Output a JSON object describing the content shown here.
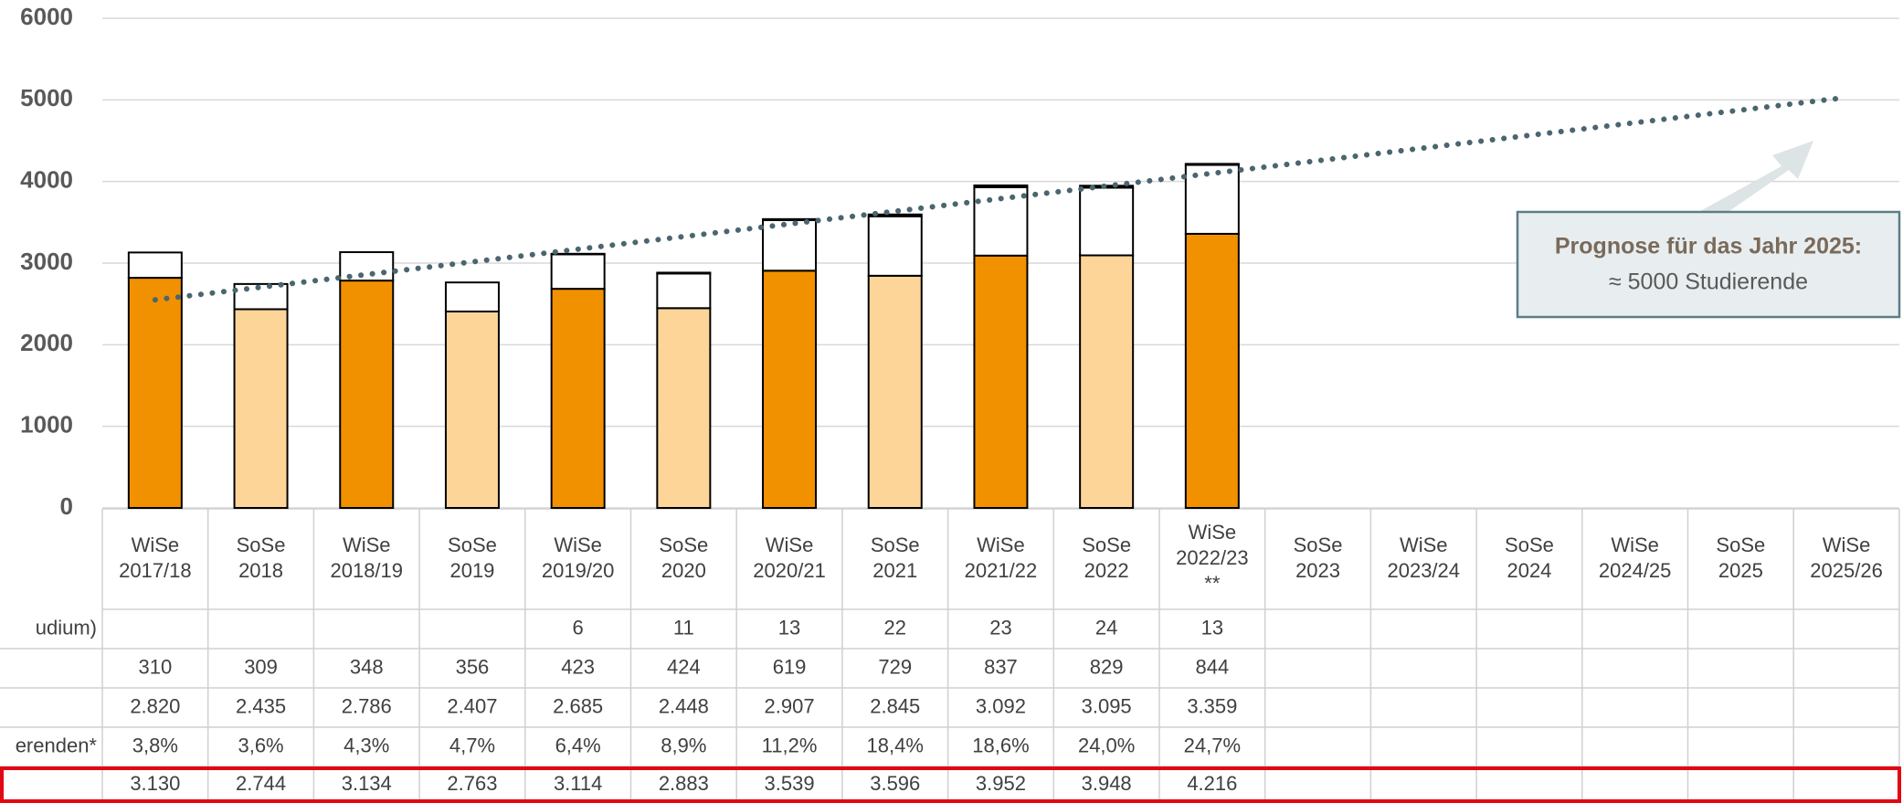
{
  "chart_data": {
    "type": "bar",
    "stacked": true,
    "categories": [
      "WiSe 2017/18",
      "SoSe 2018",
      "WiSe 2018/19",
      "SoSe 2019",
      "WiSe 2019/20",
      "SoSe 2020",
      "WiSe 2020/21",
      "SoSe 2021",
      "WiSe 2021/22",
      "SoSe 2022",
      "WiSe 2022/23 **",
      "SoSe 2023",
      "WiSe 2023/24",
      "SoSe 2024",
      "WiSe 2024/25",
      "SoSe 2025",
      "WiSe 2025/26"
    ],
    "series": [
      {
        "name": "udium)",
        "color": "#000000",
        "values": [
          null,
          null,
          null,
          null,
          6,
          11,
          13,
          22,
          23,
          24,
          13,
          null,
          null,
          null,
          null,
          null,
          null
        ]
      },
      {
        "color": "#ffffff",
        "values": [
          310,
          309,
          348,
          356,
          423,
          424,
          619,
          729,
          837,
          829,
          844,
          null,
          null,
          null,
          null,
          null,
          null
        ]
      },
      {
        "colors": [
          "#f29100",
          "#fdd599",
          "#f29100",
          "#fdd599",
          "#f29100",
          "#fdd599",
          "#f29100",
          "#fdd599",
          "#f29100",
          "#fdd599",
          "#f29100",
          null,
          null,
          null,
          null,
          null,
          null
        ],
        "values": [
          2820,
          2435,
          2786,
          2407,
          2685,
          2448,
          2907,
          2845,
          3092,
          3095,
          3359,
          null,
          null,
          null,
          null,
          null,
          null
        ],
        "value_labels": [
          "2.820",
          "2.435",
          "2.786",
          "2.407",
          "2.685",
          "2.448",
          "2.907",
          "2.845",
          "3.092",
          "3.095",
          "3.359",
          null,
          null,
          null,
          null,
          null,
          null
        ]
      }
    ],
    "share_row": {
      "label": "erenden*",
      "values": [
        3.8,
        3.6,
        4.3,
        4.7,
        6.4,
        8.9,
        11.2,
        18.4,
        18.6,
        24.0,
        24.7,
        null,
        null,
        null,
        null,
        null,
        null
      ],
      "value_labels": [
        "3,8%",
        "3,6%",
        "4,3%",
        "4,7%",
        "6,4%",
        "8,9%",
        "11,2%",
        "18,4%",
        "18,6%",
        "24,0%",
        "24,7%",
        null,
        null,
        null,
        null,
        null,
        null
      ]
    },
    "total_row": {
      "values": [
        3130,
        2744,
        3134,
        2763,
        3114,
        2883,
        3539,
        3596,
        3952,
        3948,
        4216,
        null,
        null,
        null,
        null,
        null,
        null
      ],
      "value_labels": [
        "3.130",
        "2.744",
        "3.134",
        "2.763",
        "3.114",
        "2.883",
        "3.539",
        "3.596",
        "3.952",
        "3.948",
        "4.216",
        null,
        null,
        null,
        null,
        null,
        null
      ]
    },
    "trend": {
      "values": [
        2550,
        5030
      ],
      "color": "#4a6670"
    },
    "annotation": {
      "title": "Prognose für das Jahr 2025:",
      "text": "≈ 5000 Studierende"
    },
    "ylim": [
      0,
      6000
    ],
    "yticks": [
      0,
      1000,
      2000,
      3000,
      4000,
      5000,
      6000
    ],
    "grid": true
  }
}
